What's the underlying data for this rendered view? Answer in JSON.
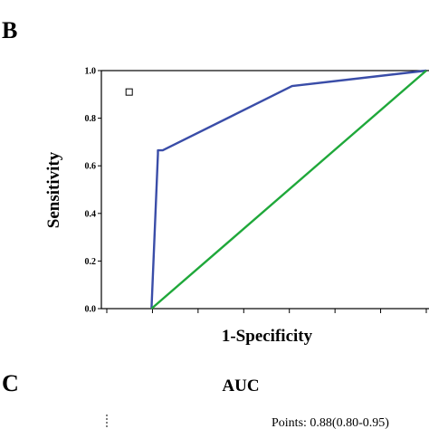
{
  "panels": {
    "b_label": "B",
    "c_label": "C"
  },
  "chart_data": {
    "type": "line",
    "title": "",
    "xlabel": "1-Specificity",
    "ylabel": "Sensitivity",
    "xlim": [
      0,
      1
    ],
    "ylim": [
      0,
      1
    ],
    "x_tick_labels": [],
    "y_tick_labels": [
      "0.0",
      "0.2",
      "0.4",
      "0.6",
      "0.8",
      "1.0"
    ],
    "y_tick_values": [
      0.0,
      0.2,
      0.4,
      0.6,
      0.8,
      1.0
    ],
    "x_tick_values": [
      0.0,
      0.1429,
      0.2857,
      0.4286,
      0.5714,
      0.7143,
      0.8571,
      1.0
    ],
    "grid": false,
    "legend": "none",
    "series": [
      {
        "color": "#3a4da8",
        "x": [
          0.14,
          0.16,
          0.16,
          0.175,
          0.58,
          1.0
        ],
        "y": [
          0.0,
          0.65,
          0.665,
          0.665,
          0.935,
          1.0
        ]
      },
      {
        "color": "#1fa83a",
        "x": [
          0.14,
          1.0
        ],
        "y": [
          0.0,
          1.0
        ]
      }
    ],
    "marker": {
      "x": 0.07,
      "y": 0.91,
      "shape": "square"
    }
  },
  "auc_panel": {
    "title": "AUC",
    "points_text": "Points: 0.88(0.80-0.95)"
  }
}
